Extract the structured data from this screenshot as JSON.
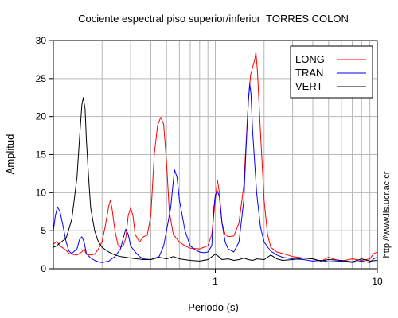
{
  "chart_data": {
    "type": "line",
    "title": "Cociente espectral piso superior/inferior  TORRES COLON",
    "xlabel": "Periodo (s)",
    "ylabel": "Amplitud",
    "x_scale": "log",
    "xlim": [
      0.1,
      10
    ],
    "ylim": [
      0,
      30
    ],
    "x_ticks": [
      1,
      10
    ],
    "x_tick_labels": [
      "1",
      "10"
    ],
    "y_ticks": [
      0,
      5,
      10,
      15,
      20,
      25,
      30
    ],
    "y_tick_labels": [
      "0",
      "5",
      "10",
      "15",
      "20",
      "25",
      "30"
    ],
    "grid": true,
    "legend_position": "top-right",
    "side_note": "http://www.lis.ucr.ac.cr",
    "colors": {
      "LONG": "#ff0000",
      "TRAN": "#0000ff",
      "VERT": "#000000",
      "grid": "#b8b8b8"
    },
    "series": [
      {
        "name": "LONG",
        "color": "#ff0000",
        "points": [
          [
            0.1,
            3.2
          ],
          [
            0.105,
            3.6
          ],
          [
            0.11,
            3.0
          ],
          [
            0.115,
            2.7
          ],
          [
            0.12,
            2.4
          ],
          [
            0.125,
            2.0
          ],
          [
            0.13,
            1.9
          ],
          [
            0.14,
            1.8
          ],
          [
            0.15,
            2.2
          ],
          [
            0.155,
            2.6
          ],
          [
            0.16,
            1.9
          ],
          [
            0.17,
            1.8
          ],
          [
            0.18,
            1.9
          ],
          [
            0.19,
            2.6
          ],
          [
            0.2,
            3.6
          ],
          [
            0.21,
            5.8
          ],
          [
            0.22,
            8.3
          ],
          [
            0.225,
            9.0
          ],
          [
            0.23,
            8.0
          ],
          [
            0.24,
            5.0
          ],
          [
            0.25,
            3.2
          ],
          [
            0.26,
            2.8
          ],
          [
            0.27,
            3.0
          ],
          [
            0.28,
            4.0
          ],
          [
            0.29,
            7.0
          ],
          [
            0.3,
            8.0
          ],
          [
            0.31,
            7.0
          ],
          [
            0.32,
            4.5
          ],
          [
            0.34,
            3.5
          ],
          [
            0.36,
            4.2
          ],
          [
            0.38,
            4.4
          ],
          [
            0.4,
            7.0
          ],
          [
            0.42,
            15.0
          ],
          [
            0.44,
            18.8
          ],
          [
            0.46,
            19.9
          ],
          [
            0.48,
            19.0
          ],
          [
            0.5,
            14.0
          ],
          [
            0.52,
            7.5
          ],
          [
            0.55,
            4.5
          ],
          [
            0.6,
            3.5
          ],
          [
            0.65,
            3.0
          ],
          [
            0.7,
            2.7
          ],
          [
            0.8,
            2.6
          ],
          [
            0.9,
            3.0
          ],
          [
            0.95,
            4.5
          ],
          [
            1.0,
            9.0
          ],
          [
            1.03,
            11.7
          ],
          [
            1.06,
            10.0
          ],
          [
            1.1,
            6.0
          ],
          [
            1.15,
            4.5
          ],
          [
            1.2,
            4.2
          ],
          [
            1.3,
            4.3
          ],
          [
            1.4,
            6.0
          ],
          [
            1.5,
            11.0
          ],
          [
            1.6,
            22.0
          ],
          [
            1.65,
            25.5
          ],
          [
            1.7,
            26.5
          ],
          [
            1.75,
            27.5
          ],
          [
            1.78,
            28.5
          ],
          [
            1.82,
            26.0
          ],
          [
            1.9,
            18.0
          ],
          [
            2.0,
            9.0
          ],
          [
            2.1,
            4.5
          ],
          [
            2.2,
            2.8
          ],
          [
            2.4,
            2.2
          ],
          [
            2.6,
            2.0
          ],
          [
            2.8,
            1.8
          ],
          [
            3.0,
            1.6
          ],
          [
            3.5,
            1.4
          ],
          [
            4.0,
            1.3
          ],
          [
            4.5,
            1.0
          ],
          [
            5.0,
            1.5
          ],
          [
            5.5,
            1.2
          ],
          [
            6.0,
            1.0
          ],
          [
            7.0,
            1.3
          ],
          [
            8.0,
            1.1
          ],
          [
            9.0,
            1.3
          ],
          [
            9.5,
            2.0
          ],
          [
            10.0,
            2.2
          ]
        ]
      },
      {
        "name": "TRAN",
        "color": "#0000ff",
        "points": [
          [
            0.1,
            5.0
          ],
          [
            0.103,
            7.0
          ],
          [
            0.106,
            8.1
          ],
          [
            0.11,
            7.5
          ],
          [
            0.115,
            5.5
          ],
          [
            0.12,
            3.5
          ],
          [
            0.125,
            2.3
          ],
          [
            0.13,
            2.0
          ],
          [
            0.14,
            2.6
          ],
          [
            0.145,
            3.8
          ],
          [
            0.15,
            4.2
          ],
          [
            0.155,
            3.5
          ],
          [
            0.16,
            2.0
          ],
          [
            0.17,
            1.4
          ],
          [
            0.18,
            1.1
          ],
          [
            0.19,
            0.9
          ],
          [
            0.2,
            0.8
          ],
          [
            0.22,
            1.0
          ],
          [
            0.24,
            1.6
          ],
          [
            0.26,
            2.6
          ],
          [
            0.27,
            4.0
          ],
          [
            0.28,
            5.2
          ],
          [
            0.29,
            4.5
          ],
          [
            0.3,
            3.0
          ],
          [
            0.32,
            2.2
          ],
          [
            0.34,
            1.6
          ],
          [
            0.36,
            1.3
          ],
          [
            0.4,
            1.2
          ],
          [
            0.45,
            1.6
          ],
          [
            0.48,
            3.0
          ],
          [
            0.5,
            5.0
          ],
          [
            0.53,
            8.0
          ],
          [
            0.55,
            11.5
          ],
          [
            0.56,
            13.0
          ],
          [
            0.58,
            12.0
          ],
          [
            0.6,
            9.0
          ],
          [
            0.65,
            5.0
          ],
          [
            0.7,
            3.0
          ],
          [
            0.75,
            2.5
          ],
          [
            0.8,
            2.2
          ],
          [
            0.85,
            2.1
          ],
          [
            0.9,
            2.2
          ],
          [
            0.95,
            3.0
          ],
          [
            0.98,
            8.0
          ],
          [
            1.0,
            9.7
          ],
          [
            1.03,
            10.2
          ],
          [
            1.06,
            9.5
          ],
          [
            1.1,
            6.0
          ],
          [
            1.15,
            3.5
          ],
          [
            1.2,
            2.6
          ],
          [
            1.3,
            2.2
          ],
          [
            1.4,
            3.5
          ],
          [
            1.5,
            9.0
          ],
          [
            1.55,
            16.0
          ],
          [
            1.6,
            22.0
          ],
          [
            1.63,
            24.3
          ],
          [
            1.66,
            23.0
          ],
          [
            1.7,
            18.0
          ],
          [
            1.8,
            10.0
          ],
          [
            1.9,
            5.5
          ],
          [
            2.0,
            3.5
          ],
          [
            2.2,
            2.3
          ],
          [
            2.4,
            1.8
          ],
          [
            2.6,
            1.5
          ],
          [
            2.8,
            1.4
          ],
          [
            3.0,
            1.3
          ],
          [
            3.5,
            1.2
          ],
          [
            4.0,
            1.0
          ],
          [
            4.5,
            1.1
          ],
          [
            5.0,
            0.9
          ],
          [
            6.0,
            1.0
          ],
          [
            7.0,
            0.8
          ],
          [
            8.0,
            1.0
          ],
          [
            9.0,
            0.8
          ],
          [
            9.5,
            1.3
          ],
          [
            10.0,
            1.5
          ]
        ]
      },
      {
        "name": "VERT",
        "color": "#000000",
        "points": [
          [
            0.1,
            2.8
          ],
          [
            0.105,
            3.0
          ],
          [
            0.11,
            3.4
          ],
          [
            0.12,
            4.0
          ],
          [
            0.13,
            6.5
          ],
          [
            0.14,
            12.0
          ],
          [
            0.145,
            17.0
          ],
          [
            0.15,
            21.5
          ],
          [
            0.153,
            22.5
          ],
          [
            0.157,
            21.0
          ],
          [
            0.16,
            17.0
          ],
          [
            0.165,
            12.0
          ],
          [
            0.17,
            8.0
          ],
          [
            0.18,
            5.0
          ],
          [
            0.19,
            3.5
          ],
          [
            0.2,
            2.8
          ],
          [
            0.22,
            2.2
          ],
          [
            0.24,
            1.8
          ],
          [
            0.26,
            1.6
          ],
          [
            0.28,
            1.5
          ],
          [
            0.3,
            1.4
          ],
          [
            0.33,
            1.3
          ],
          [
            0.36,
            1.2
          ],
          [
            0.4,
            1.2
          ],
          [
            0.45,
            1.5
          ],
          [
            0.5,
            1.3
          ],
          [
            0.55,
            1.6
          ],
          [
            0.6,
            1.3
          ],
          [
            0.7,
            1.1
          ],
          [
            0.8,
            1.0
          ],
          [
            0.9,
            1.2
          ],
          [
            1.0,
            1.9
          ],
          [
            1.05,
            1.6
          ],
          [
            1.1,
            1.2
          ],
          [
            1.2,
            1.3
          ],
          [
            1.3,
            1.1
          ],
          [
            1.4,
            1.2
          ],
          [
            1.5,
            1.4
          ],
          [
            1.6,
            1.2
          ],
          [
            1.7,
            1.1
          ],
          [
            1.8,
            1.3
          ],
          [
            2.0,
            1.2
          ],
          [
            2.2,
            1.8
          ],
          [
            2.4,
            1.3
          ],
          [
            2.6,
            1.1
          ],
          [
            3.0,
            1.2
          ],
          [
            3.5,
            1.4
          ],
          [
            4.0,
            1.3
          ],
          [
            4.5,
            1.0
          ],
          [
            5.0,
            1.2
          ],
          [
            6.0,
            1.1
          ],
          [
            7.0,
            0.9
          ],
          [
            8.0,
            1.3
          ],
          [
            9.0,
            1.0
          ],
          [
            10.0,
            1.1
          ]
        ]
      }
    ]
  }
}
